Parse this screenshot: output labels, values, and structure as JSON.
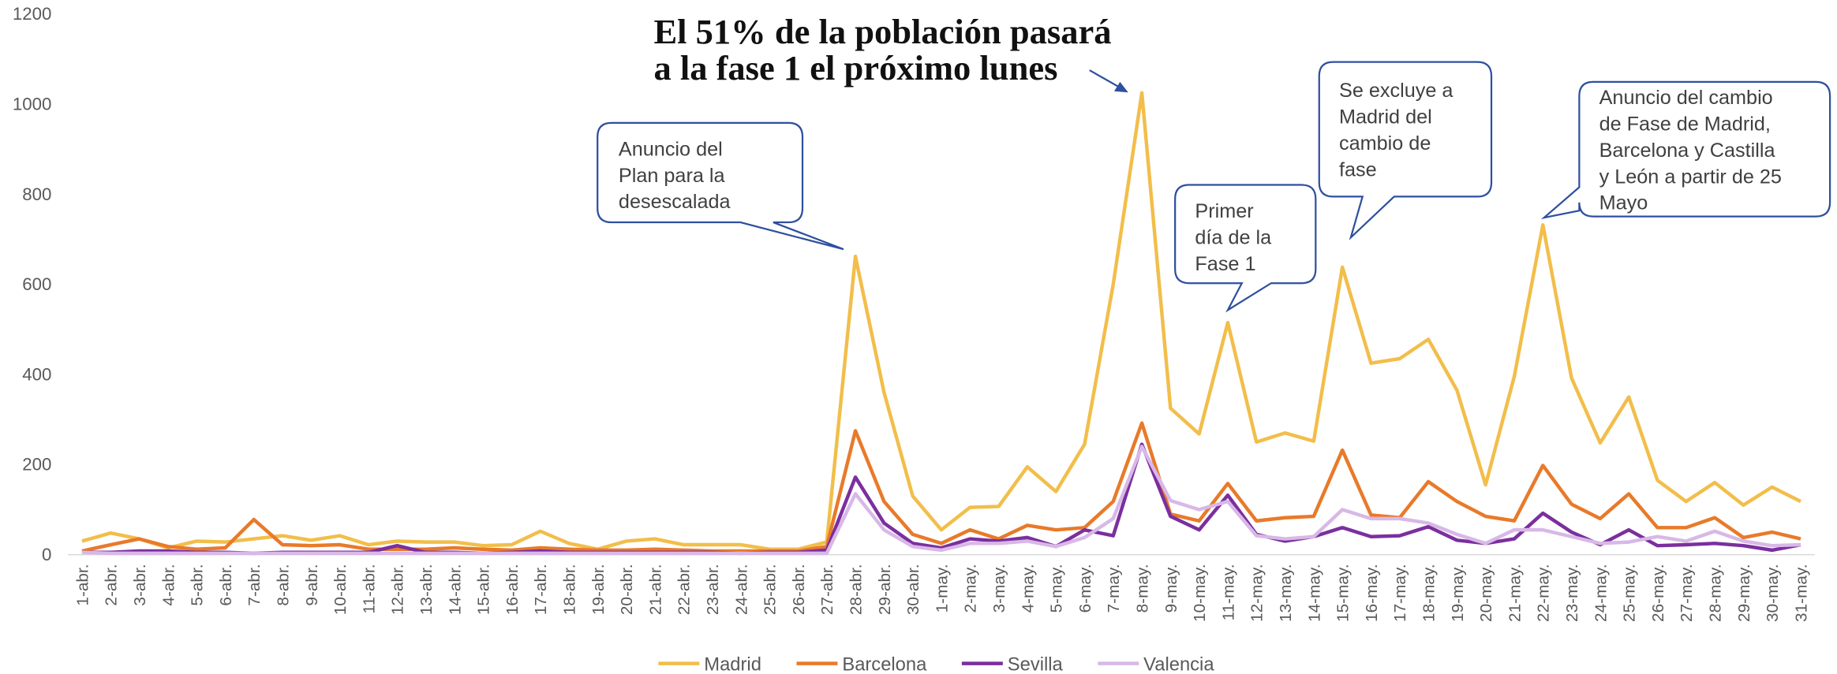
{
  "chart_data": {
    "type": "line",
    "title_lines": [
      "El 51% de la población pasará",
      "a la fase 1 el próximo lunes"
    ],
    "categories": [
      "1-abr.",
      "2-abr.",
      "3-abr.",
      "4-abr.",
      "5-abr.",
      "6-abr.",
      "7-abr.",
      "8-abr.",
      "9-abr.",
      "10-abr.",
      "11-abr.",
      "12-abr.",
      "13-abr.",
      "14-abr.",
      "15-abr.",
      "16-abr.",
      "17-abr.",
      "18-abr.",
      "19-abr.",
      "20-abr.",
      "21-abr.",
      "22-abr.",
      "23-abr.",
      "24-abr.",
      "25-abr.",
      "26-abr.",
      "27-abr.",
      "28-abr.",
      "29-abr.",
      "30-abr.",
      "1-may.",
      "2-may.",
      "3-may.",
      "4-may.",
      "5-may.",
      "6-may.",
      "7-may.",
      "8-may.",
      "9-may.",
      "10-may.",
      "11-may.",
      "12-may.",
      "13-may.",
      "14-may.",
      "15-may.",
      "16-may.",
      "17-may.",
      "18-may.",
      "19-may.",
      "20-may.",
      "21-may.",
      "22-may.",
      "23-may.",
      "24-may.",
      "25-may.",
      "26-may.",
      "27-may.",
      "28-may.",
      "29-may.",
      "30-may.",
      "31-may."
    ],
    "series": [
      {
        "name": "Madrid",
        "color": "#f2be4a",
        "values": [
          30,
          48,
          35,
          15,
          30,
          28,
          35,
          42,
          32,
          42,
          22,
          30,
          28,
          28,
          20,
          22,
          52,
          25,
          12,
          30,
          35,
          22,
          22,
          22,
          12,
          12,
          28,
          662,
          360,
          130,
          55,
          105,
          107,
          195,
          140,
          245,
          600,
          1025,
          325,
          268,
          515,
          250,
          270,
          252,
          638,
          425,
          435,
          478,
          365,
          155,
          395,
          732,
          392,
          248,
          350,
          165,
          118,
          160,
          110,
          150,
          118
        ]
      },
      {
        "name": "Barcelona",
        "color": "#e87a2a",
        "values": [
          8,
          22,
          35,
          18,
          12,
          15,
          78,
          22,
          20,
          22,
          12,
          12,
          12,
          15,
          12,
          10,
          15,
          12,
          10,
          10,
          12,
          10,
          8,
          8,
          8,
          8,
          18,
          275,
          118,
          45,
          25,
          55,
          35,
          65,
          55,
          60,
          118,
          292,
          90,
          75,
          158,
          75,
          82,
          85,
          232,
          88,
          82,
          162,
          118,
          85,
          75,
          198,
          112,
          80,
          135,
          60,
          60,
          82,
          38,
          50,
          35
        ]
      },
      {
        "name": "Sevilla",
        "color": "#7b2f9e",
        "values": [
          5,
          5,
          8,
          8,
          5,
          5,
          3,
          5,
          5,
          5,
          5,
          20,
          5,
          5,
          3,
          5,
          8,
          5,
          5,
          5,
          5,
          5,
          5,
          3,
          5,
          5,
          10,
          172,
          70,
          25,
          15,
          35,
          30,
          38,
          18,
          55,
          42,
          245,
          85,
          55,
          132,
          45,
          30,
          40,
          60,
          40,
          42,
          62,
          32,
          25,
          35,
          92,
          50,
          22,
          55,
          20,
          22,
          25,
          20,
          10,
          22
        ]
      },
      {
        "name": "Valencia",
        "color": "#d8b8e8",
        "values": [
          5,
          3,
          3,
          3,
          3,
          3,
          3,
          3,
          3,
          3,
          3,
          3,
          3,
          3,
          3,
          3,
          3,
          3,
          3,
          3,
          3,
          3,
          3,
          3,
          3,
          3,
          3,
          135,
          55,
          18,
          10,
          25,
          25,
          30,
          18,
          38,
          80,
          240,
          120,
          100,
          118,
          42,
          35,
          40,
          100,
          80,
          80,
          70,
          45,
          25,
          55,
          55,
          40,
          25,
          28,
          40,
          30,
          52,
          30,
          20,
          22
        ]
      }
    ],
    "ylim": [
      0,
      1200
    ],
    "yticks": [
      0,
      200,
      400,
      600,
      800,
      1000,
      1200
    ],
    "grid": false,
    "legend": "bottom",
    "annotations": [
      {
        "lines": [
          "Anuncio del",
          "Plan para la",
          "desescalada"
        ]
      },
      {
        "lines": [
          "Primer",
          "día de la",
          "Fase 1"
        ]
      },
      {
        "lines": [
          "Se excluye a",
          "Madrid del",
          "cambio de",
          "fase"
        ]
      },
      {
        "lines": [
          "Anuncio del cambio",
          "de Fase de Madrid,",
          "Barcelona y Castilla",
          "y León a partir de 25",
          "Mayo"
        ]
      }
    ]
  }
}
